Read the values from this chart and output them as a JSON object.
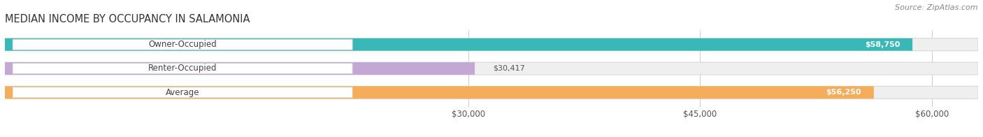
{
  "title": "MEDIAN INCOME BY OCCUPANCY IN SALAMONIA",
  "source": "Source: ZipAtlas.com",
  "categories": [
    "Owner-Occupied",
    "Renter-Occupied",
    "Average"
  ],
  "values": [
    58750,
    30417,
    56250
  ],
  "labels": [
    "$58,750",
    "$30,417",
    "$56,250"
  ],
  "bar_colors": [
    "#3ab8b8",
    "#c4a8d4",
    "#f5ad5a"
  ],
  "xmin": 0,
  "xmax": 63000,
  "xticks": [
    30000,
    45000,
    60000
  ],
  "xtick_labels": [
    "$30,000",
    "$45,000",
    "$60,000"
  ],
  "title_fontsize": 10.5,
  "source_fontsize": 8,
  "label_fontsize": 8.5,
  "value_fontsize": 8
}
